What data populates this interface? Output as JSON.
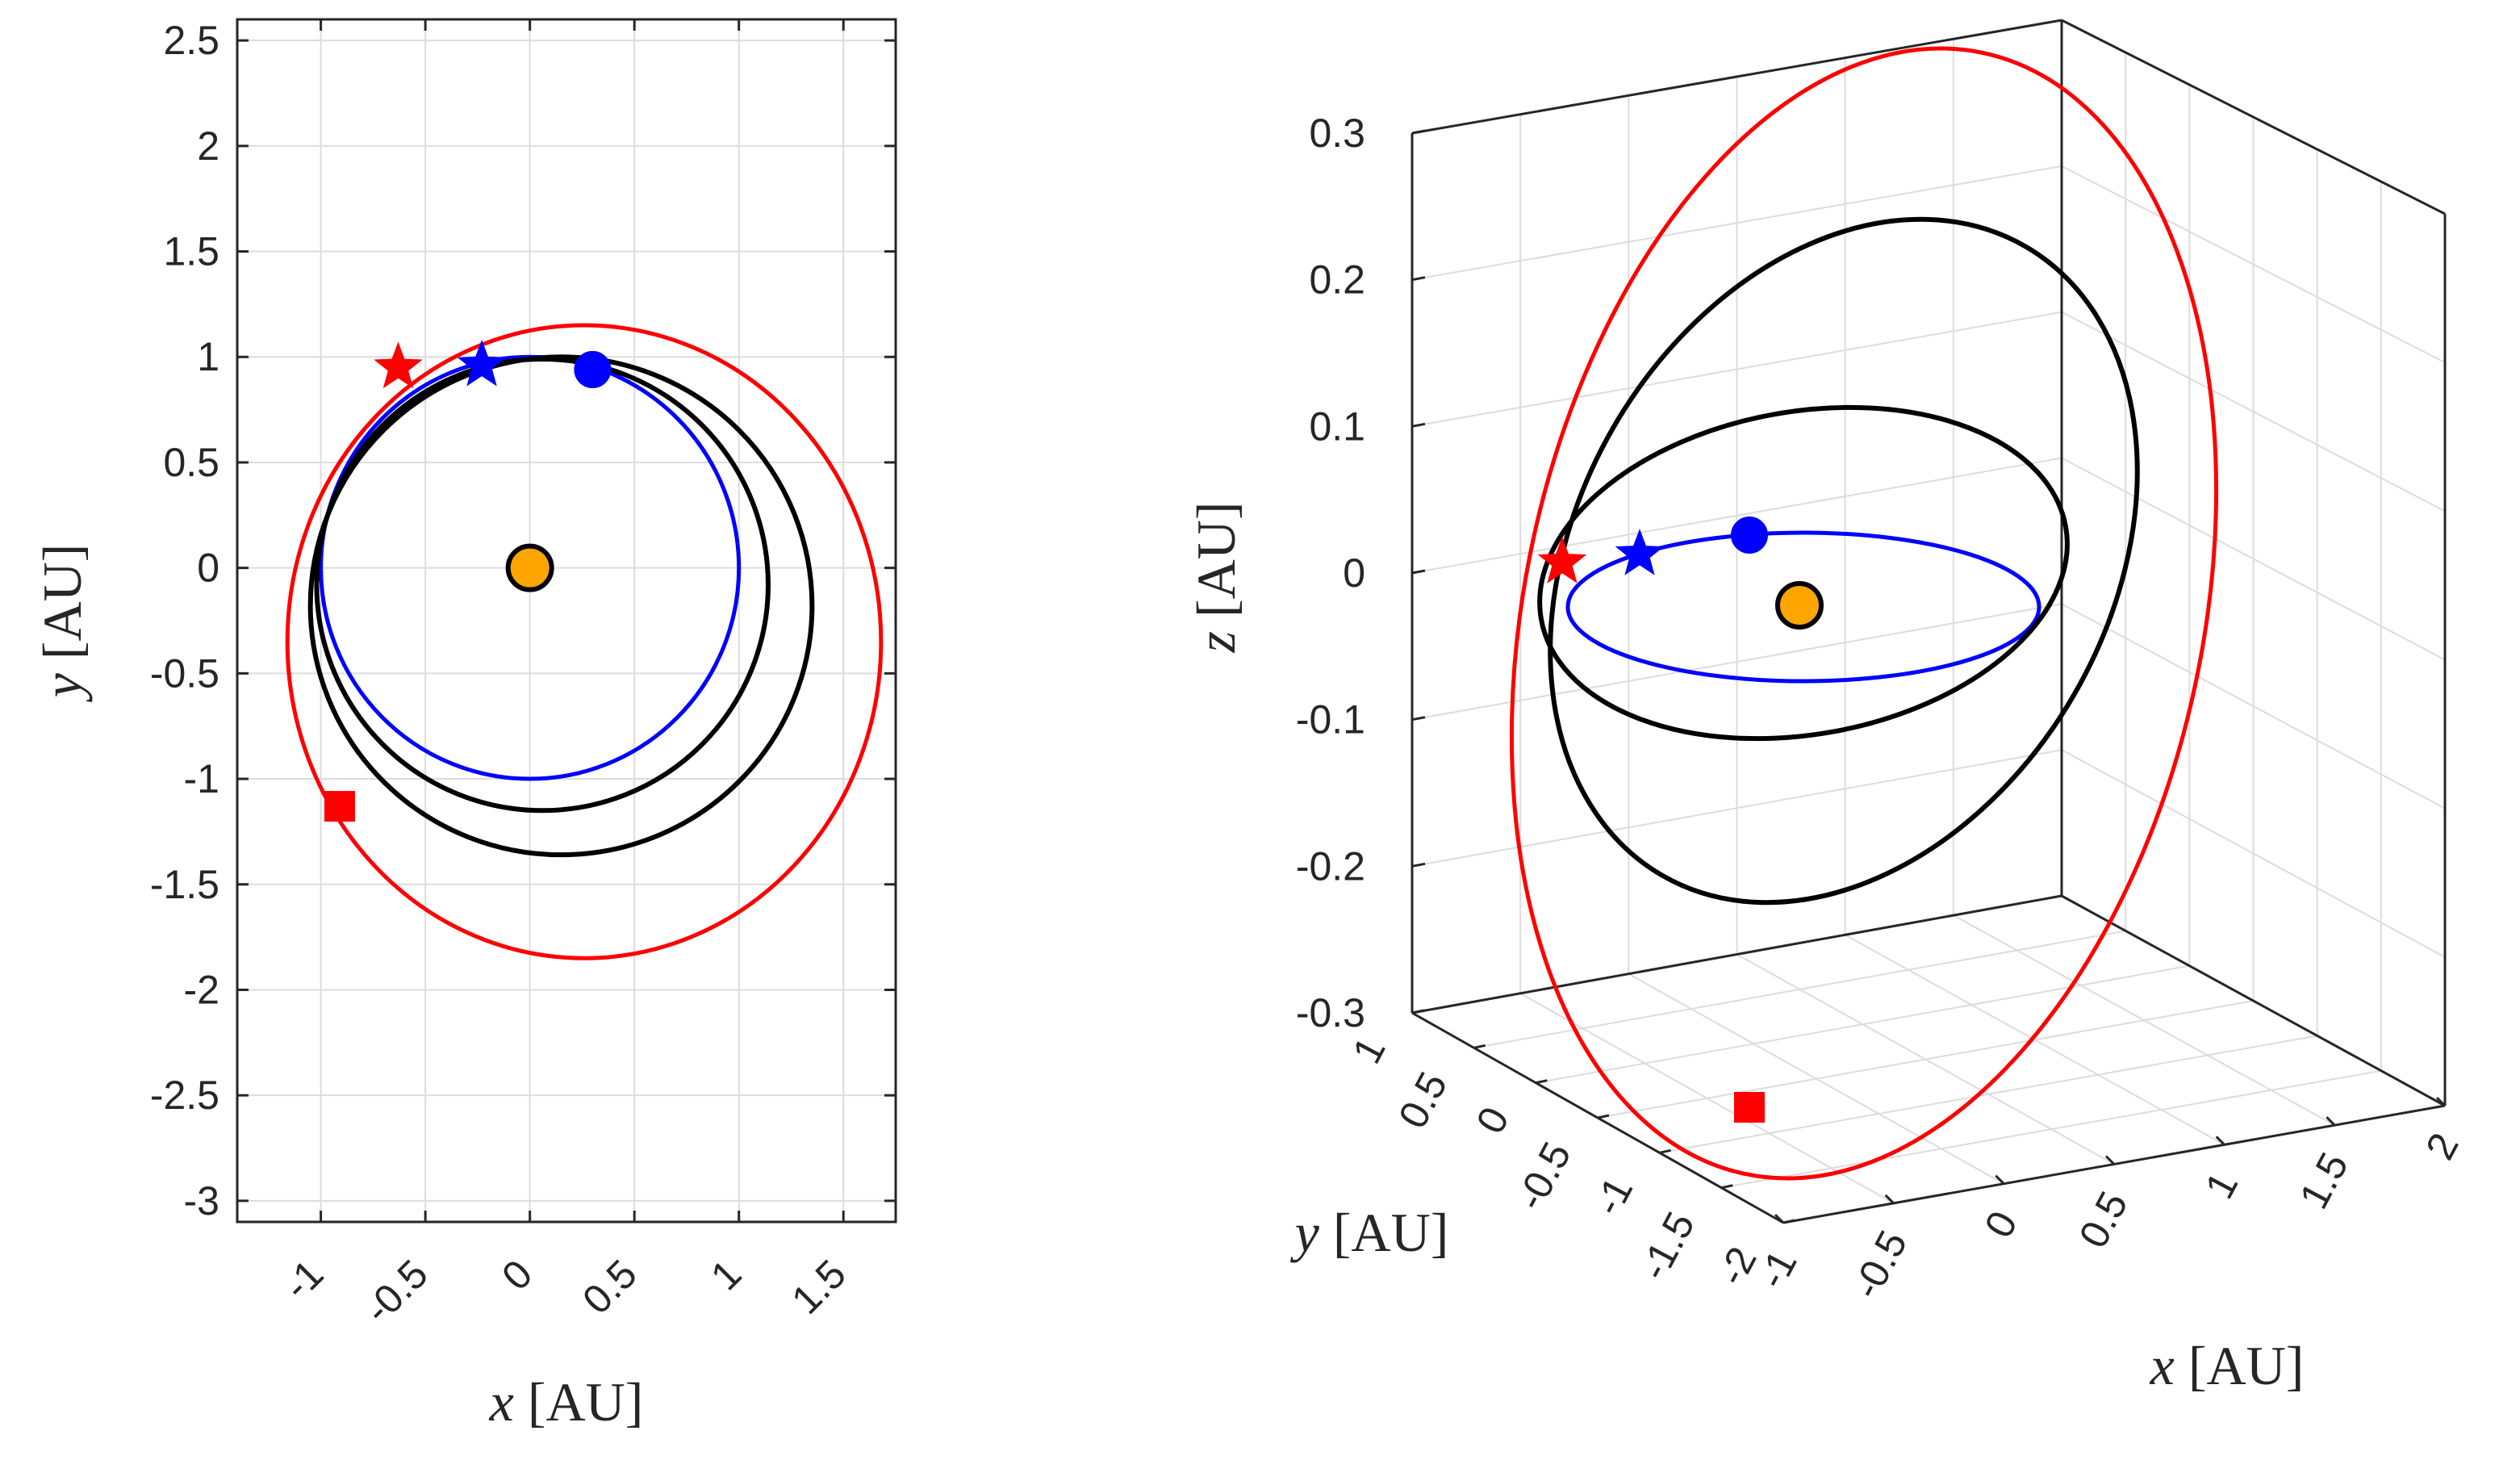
{
  "chart_data": [
    {
      "type": "line",
      "view": "2D top view",
      "xlabel": "x [AU]",
      "ylabel": "y [AU]",
      "xlabel_var": "x",
      "ylabel_var": "y",
      "xlabel_unit": "[AU]",
      "ylabel_unit": "[AU]",
      "xlim": [
        -1.4,
        1.75
      ],
      "ylim": [
        -3.1,
        2.6
      ],
      "xticks": [
        -1,
        -0.5,
        0,
        0.5,
        1,
        1.5
      ],
      "xtick_labels": [
        "-1",
        "-0.5",
        "0",
        "0.5",
        "1",
        "1.5"
      ],
      "yticks": [
        2.5,
        2,
        1.5,
        1,
        0.5,
        0,
        -0.5,
        -1,
        -1.5,
        -2,
        -2.5,
        -3
      ],
      "ytick_labels": [
        "2.5",
        "2",
        "1.5",
        "1",
        "0.5",
        "0",
        "-0.5",
        "-1",
        "-1.5",
        "-2",
        "-2.5",
        "-3"
      ],
      "grid": true,
      "series": [
        {
          "name": "earth-orbit",
          "color": "#0000ff",
          "shape": "ellipse",
          "center": [
            0,
            0
          ],
          "radii": [
            1.0,
            1.0
          ]
        },
        {
          "name": "inner-black-orbit",
          "color": "#000000",
          "shape": "ellipse",
          "center": [
            0.06,
            -0.08
          ],
          "radii": [
            1.08,
            1.07
          ]
        },
        {
          "name": "outer-black-orbit",
          "color": "#000000",
          "shape": "ellipse",
          "center": [
            0.15,
            -0.18
          ],
          "radii": [
            1.2,
            1.18
          ]
        },
        {
          "name": "transfer-orbit",
          "color": "#ff0000",
          "shape": "ellipse",
          "center": [
            0.26,
            -0.35
          ],
          "radii": [
            1.42,
            1.5
          ]
        }
      ],
      "markers": [
        {
          "name": "sun",
          "type": "circle",
          "x": 0,
          "y": 0,
          "fill": "#ffa500",
          "edge": "#000000"
        },
        {
          "name": "earth",
          "type": "circle",
          "x": 0.3,
          "y": 0.94,
          "fill": "#0000ff"
        },
        {
          "name": "blue-star",
          "type": "star",
          "x": -0.23,
          "y": 0.96,
          "fill": "#0000ff"
        },
        {
          "name": "red-star",
          "type": "star",
          "x": -0.63,
          "y": 0.95,
          "fill": "#ff0000"
        },
        {
          "name": "red-square",
          "type": "square",
          "x": -0.91,
          "y": -1.13,
          "fill": "#ff0000"
        }
      ]
    },
    {
      "type": "line",
      "view": "3D perspective",
      "xlabel": "x [AU]",
      "ylabel": "y [AU]",
      "zlabel": "z [AU]",
      "xlabel_var": "x",
      "ylabel_var": "y",
      "zlabel_var": "z",
      "xlabel_unit": "[AU]",
      "ylabel_unit": "[AU]",
      "zlabel_unit": "[AU]",
      "xlim": [
        -1,
        2
      ],
      "ylim": [
        -2,
        1
      ],
      "zlim": [
        -0.3,
        0.3
      ],
      "xticks": [
        -1,
        -0.5,
        0,
        0.5,
        1,
        1.5,
        2
      ],
      "xtick_labels": [
        "-1",
        "-0.5",
        "0",
        "0.5",
        "1",
        "1.5",
        "2"
      ],
      "yticks": [
        1,
        0.5,
        0,
        -0.5,
        -1,
        -1.5,
        -2
      ],
      "ytick_labels": [
        "1",
        "0.5",
        "0",
        "-0.5",
        "-1",
        "-1.5",
        "-2"
      ],
      "zticks": [
        0.3,
        0.2,
        0.1,
        0,
        -0.1,
        -0.2,
        -0.3
      ],
      "ztick_labels": [
        "0.3",
        "0.2",
        "0.1",
        "0",
        "-0.1",
        "-0.2",
        "-0.3"
      ],
      "grid": true,
      "series": [
        {
          "name": "earth-orbit",
          "color": "#0000ff"
        },
        {
          "name": "inner-black-orbit",
          "color": "#000000"
        },
        {
          "name": "outer-black-orbit",
          "color": "#000000"
        },
        {
          "name": "transfer-orbit",
          "color": "#ff0000"
        }
      ],
      "markers": [
        {
          "name": "sun",
          "type": "circle",
          "fill": "#ffa500",
          "edge": "#000000"
        },
        {
          "name": "earth",
          "type": "circle",
          "fill": "#0000ff"
        },
        {
          "name": "blue-star",
          "type": "star",
          "fill": "#0000ff"
        },
        {
          "name": "red-star",
          "type": "star",
          "fill": "#ff0000"
        },
        {
          "name": "red-square",
          "type": "square",
          "fill": "#ff0000"
        }
      ]
    }
  ]
}
